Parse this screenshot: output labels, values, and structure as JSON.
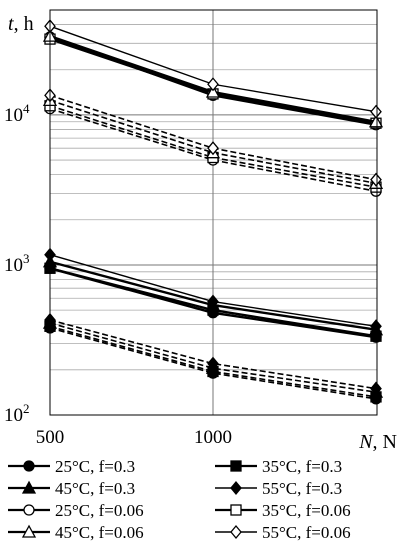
{
  "chart_data": {
    "type": "line",
    "y_axis_label": "t",
    "y_axis_unit": ", h",
    "x_axis_label": "N",
    "x_axis_unit": ", N",
    "y_scale": "log",
    "ylim": [
      100,
      50000
    ],
    "xlim": [
      500,
      1500
    ],
    "grid": true,
    "x_ticks": [
      {
        "value": 500,
        "label": "500"
      },
      {
        "value": 1000,
        "label": "1000"
      }
    ],
    "y_ticks": [
      {
        "value": 100,
        "base": "10",
        "exp": "2"
      },
      {
        "value": 1000,
        "base": "10",
        "exp": "3"
      },
      {
        "value": 10000,
        "base": "10",
        "exp": "4"
      }
    ],
    "x": [
      500,
      1000,
      1500
    ],
    "legend_placement": "bottom",
    "series": [
      {
        "name": "25°C, f=0.3",
        "marker": "circle-filled",
        "line": "solid-thick",
        "values": [
          950,
          480,
          330
        ]
      },
      {
        "name": "35°C, f=0.3",
        "marker": "square-filled",
        "line": "solid-thick",
        "values": [
          950,
          500,
          335
        ]
      },
      {
        "name": "45°C, f=0.3",
        "marker": "triangle-filled",
        "line": "solid-thick",
        "values": [
          1050,
          540,
          370
        ]
      },
      {
        "name": "55°C, f=0.3",
        "marker": "diamond-filled",
        "line": "solid-thin",
        "values": [
          1170,
          570,
          390
        ]
      },
      {
        "name": "25°C, f=0.06",
        "marker": "circle-open",
        "line": "solid-thick",
        "values": [
          33000,
          13500,
          8600
        ]
      },
      {
        "name": "35°C, f=0.06",
        "marker": "square-open",
        "line": "solid-thick",
        "values": [
          32000,
          13800,
          8800
        ]
      },
      {
        "name": "45°C, f=0.06",
        "marker": "triangle-open",
        "line": "solid-thick",
        "values": [
          33500,
          14200,
          9000
        ]
      },
      {
        "name": "55°C, f=0.06",
        "marker": "diamond-open",
        "line": "solid-thin",
        "values": [
          39000,
          16000,
          10500
        ]
      }
    ],
    "dashed_series": [
      {
        "marker": "circle-filled",
        "values": [
          380,
          190,
          128
        ]
      },
      {
        "marker": "square-filled",
        "values": [
          390,
          195,
          132
        ]
      },
      {
        "marker": "triangle-filled",
        "values": [
          410,
          205,
          142
        ]
      },
      {
        "marker": "diamond-filled",
        "values": [
          430,
          220,
          150
        ]
      },
      {
        "marker": "circle-open",
        "values": [
          11000,
          5000,
          3100
        ]
      },
      {
        "marker": "square-open",
        "values": [
          11500,
          5200,
          3300
        ]
      },
      {
        "marker": "triangle-open",
        "values": [
          12500,
          5600,
          3500
        ]
      },
      {
        "marker": "diamond-open",
        "values": [
          13500,
          6000,
          3700
        ]
      }
    ]
  }
}
